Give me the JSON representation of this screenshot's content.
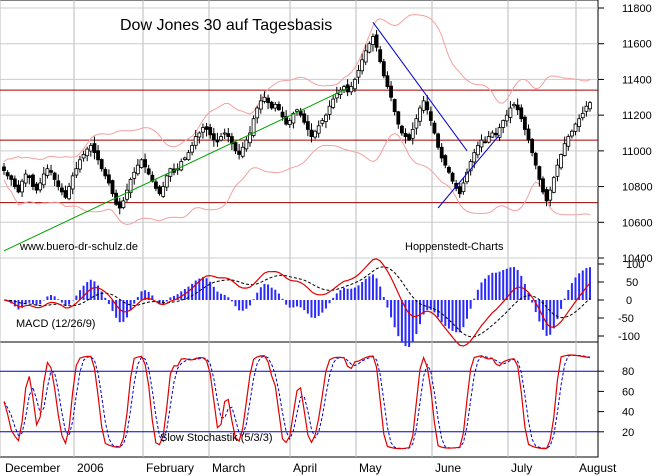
{
  "chart_data": [
    {
      "type": "candlestick",
      "title": "Dow Jones 30 auf Tagesbasis",
      "watermark_left": "www.buero-dr-schulz.de",
      "watermark_right": "Hoppenstedt-Charts",
      "ylim": [
        10400,
        11800
      ],
      "y_ticks": [
        10400,
        10600,
        10800,
        11000,
        11200,
        11400,
        11600,
        11800
      ],
      "y_tick_labels": [
        "10400",
        "10600",
        "10800",
        "11000",
        "11200",
        "11400",
        "11600",
        "11800"
      ],
      "horizontal_levels": [
        10710,
        11060,
        11340
      ],
      "x_tick_labels": [
        "December",
        "2006",
        "February",
        "March",
        "April",
        "May",
        "June",
        "July",
        "August"
      ],
      "close_series": [
        10890,
        10860,
        10840,
        10800,
        10770,
        10830,
        10870,
        10850,
        10800,
        10780,
        10820,
        10870,
        10900,
        10880,
        10840,
        10800,
        10770,
        10740,
        10800,
        10860,
        10900,
        10950,
        10980,
        11010,
        11030,
        10990,
        10950,
        10900,
        10860,
        10820,
        10760,
        10700,
        10680,
        10720,
        10780,
        10840,
        10880,
        10920,
        10950,
        10910,
        10870,
        10830,
        10790,
        10760,
        10800,
        10860,
        10900,
        10880,
        10900,
        10940,
        10960,
        10990,
        11030,
        11080,
        11100,
        11130,
        11120,
        11090,
        11060,
        11050,
        11080,
        11100,
        11080,
        11040,
        11000,
        10980,
        11020,
        11060,
        11100,
        11180,
        11240,
        11280,
        11300,
        11270,
        11240,
        11260,
        11230,
        11190,
        11150,
        11170,
        11210,
        11230,
        11200,
        11160,
        11120,
        11080,
        11110,
        11140,
        11170,
        11200,
        11250,
        11290,
        11320,
        11340,
        11360,
        11330,
        11360,
        11400,
        11450,
        11510,
        11560,
        11600,
        11640,
        11580,
        11500,
        11420,
        11360,
        11300,
        11220,
        11150,
        11100,
        11080,
        11060,
        11120,
        11180,
        11240,
        11280,
        11230,
        11170,
        11100,
        11020,
        10960,
        10920,
        10880,
        10830,
        10790,
        10760,
        10820,
        10880,
        10940,
        10990,
        11030,
        11060,
        11050,
        11080,
        11100,
        11090,
        11130,
        11170,
        11200,
        11240,
        11260,
        11230,
        11180,
        11120,
        11060,
        10990,
        10920,
        10840,
        10770,
        10720,
        10780,
        10850,
        10920,
        10980,
        11040,
        11080,
        11110,
        11150,
        11180,
        11210,
        11250,
        11270
      ],
      "trendlines": [
        {
          "color": "#00a000",
          "from": [
            0,
            10440
          ],
          "to": [
            95,
            11350
          ]
        },
        {
          "color": "#0000cc",
          "from": [
            102,
            11720
          ],
          "to": [
            128,
            11000
          ]
        },
        {
          "color": "#0000cc",
          "from": [
            120,
            10680
          ],
          "to": [
            137,
            11090
          ]
        }
      ]
    },
    {
      "type": "line",
      "title": "MACD (12/26/9)",
      "ylim": [
        -150,
        150
      ],
      "y_ticks": [
        100,
        50,
        0,
        -50,
        -100
      ],
      "y_tick_labels": [
        "100",
        "50",
        "0",
        "-50",
        "-100"
      ],
      "series_desc": "MACD line (red), signal (black dashed), histogram (blue)"
    },
    {
      "type": "line",
      "title": "Slow Stochastik (5/3/3)",
      "ylim": [
        0,
        100
      ],
      "y_ticks": [
        80,
        60,
        40,
        20
      ],
      "y_tick_labels": [
        "80",
        "60",
        "40",
        "20"
      ],
      "levels": [
        80,
        20
      ]
    }
  ]
}
